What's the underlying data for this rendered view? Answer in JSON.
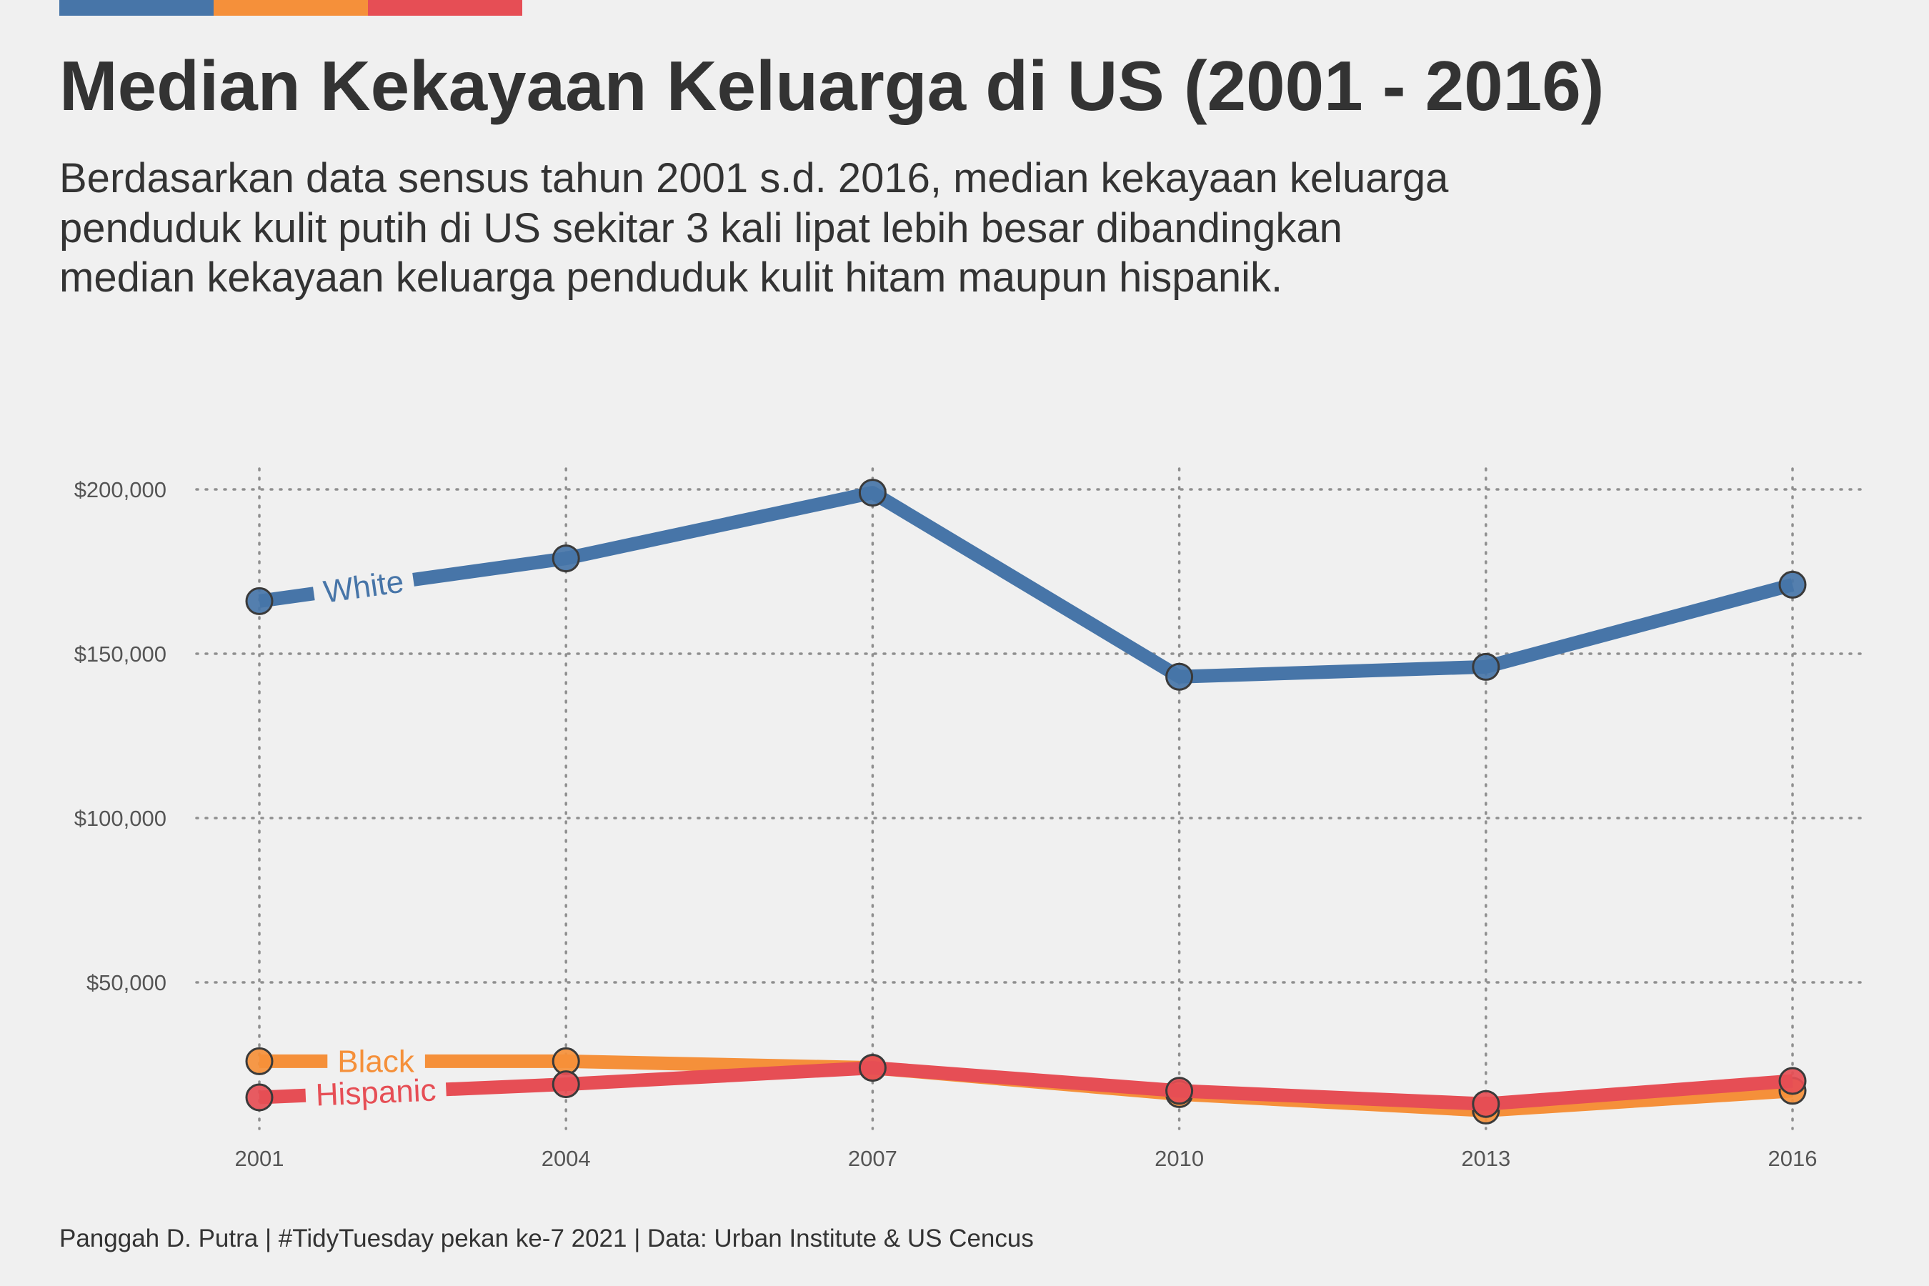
{
  "title": "Median Kekayaan Keluarga di US (2001 - 2016)",
  "subtitle_lines": [
    "Berdasarkan data sensus tahun 2001 s.d. 2016, median kekayaan keluarga",
    "penduduk kulit putih di US sekitar 3 kali lipat lebih besar dibandingkan",
    "median kekayaan keluarga penduduk kulit hitam maupun hispanik."
  ],
  "caption": "Panggah D. Putra | #TidyTuesday pekan ke-7 2021 | Data: Urban Institute & US Cencus",
  "colors": {
    "white": "#4775a8",
    "black": "#f5903a",
    "hispanic": "#e64e55",
    "background": "#f0f0f0",
    "grid": "#8f8f8f",
    "text": "#333333"
  },
  "chart_data": {
    "type": "line",
    "title": "Median Kekayaan Keluarga di US (2001 - 2016)",
    "xlabel": "",
    "ylabel": "",
    "x": [
      2001,
      2004,
      2007,
      2010,
      2013,
      2016
    ],
    "xticks": [
      "2001",
      "2004",
      "2007",
      "2010",
      "2013",
      "2016"
    ],
    "yticks": [
      50000,
      100000,
      150000,
      200000
    ],
    "ytick_labels": [
      "$50,000",
      "$100,000",
      "$150,000",
      "$200,000"
    ],
    "ylim": [
      5000,
      207000
    ],
    "grid": true,
    "legend": "direct labels on lines",
    "series": [
      {
        "name": "White",
        "color_key": "white",
        "values": [
          166000,
          179000,
          199000,
          143000,
          146000,
          171000
        ]
      },
      {
        "name": "Black",
        "color_key": "black",
        "values": [
          26000,
          26000,
          24000,
          16000,
          11000,
          17000
        ]
      },
      {
        "name": "Hispanic",
        "color_key": "hispanic",
        "values": [
          15000,
          19000,
          24000,
          17000,
          13000,
          20000
        ]
      }
    ]
  }
}
